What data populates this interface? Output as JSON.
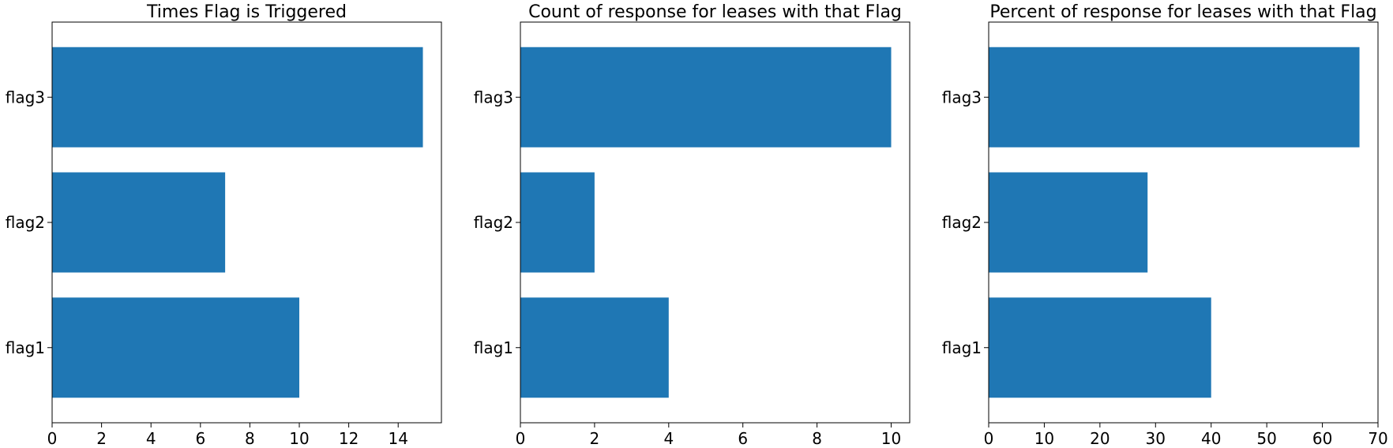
{
  "chart_data": [
    {
      "type": "bar",
      "orientation": "horizontal",
      "title": "Times Flag is Triggered",
      "categories": [
        "flag1",
        "flag2",
        "flag3"
      ],
      "values": [
        10,
        7,
        15
      ],
      "xlim": [
        0,
        15.75
      ],
      "xticks": [
        0,
        2,
        4,
        6,
        8,
        10,
        12,
        14
      ],
      "xlabel": "",
      "ylabel": "",
      "grid": false,
      "color": "#1f77b4"
    },
    {
      "type": "bar",
      "orientation": "horizontal",
      "title": "Count of response for leases with that Flag",
      "categories": [
        "flag1",
        "flag2",
        "flag3"
      ],
      "values": [
        4,
        2,
        10
      ],
      "xlim": [
        0,
        10.5
      ],
      "xticks": [
        0,
        2,
        4,
        6,
        8,
        10
      ],
      "xlabel": "",
      "ylabel": "",
      "grid": false,
      "color": "#1f77b4"
    },
    {
      "type": "bar",
      "orientation": "horizontal",
      "title": "Percent of response for leases with that Flag",
      "categories": [
        "flag1",
        "flag2",
        "flag3"
      ],
      "values": [
        40,
        28.57,
        66.67
      ],
      "xlim": [
        0,
        70
      ],
      "xticks": [
        0,
        10,
        20,
        30,
        40,
        50,
        60,
        70
      ],
      "xlabel": "",
      "ylabel": "",
      "grid": false,
      "color": "#1f77b4"
    }
  ]
}
